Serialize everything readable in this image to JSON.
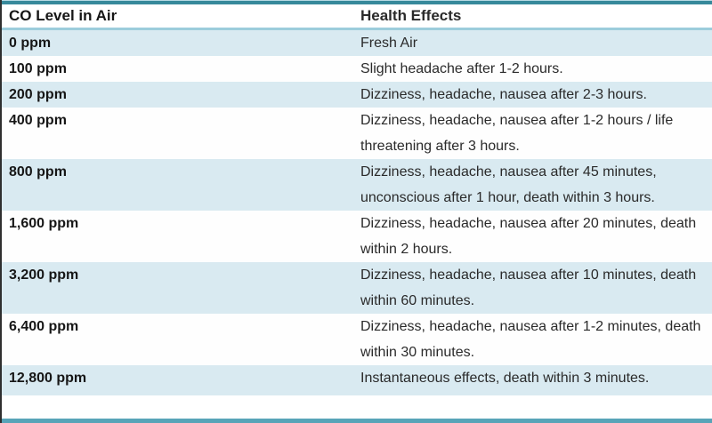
{
  "colors": {
    "top_border": "#37899b",
    "bottom_border": "#58a4b8",
    "header_separator": "#9ccddc",
    "alt_row_background": "#d9eaf1",
    "left_edge_line": "#2f2f2f",
    "text": "#1f1f1f"
  },
  "chart_data": {
    "type": "table",
    "columns": [
      "CO Level in Air",
      "Health Effects"
    ],
    "rows": [
      {
        "level": "0 ppm",
        "effect": "Fresh Air"
      },
      {
        "level": "100 ppm",
        "effect": "Slight headache after 1-2 hours."
      },
      {
        "level": "200 ppm",
        "effect": "Dizziness, headache, nausea after 2-3 hours."
      },
      {
        "level": "400 ppm",
        "effect": "Dizziness, headache, nausea after 1-2 hours / life threatening after 3 hours."
      },
      {
        "level": "800 ppm",
        "effect": "Dizziness, headache, nausea after 45 minutes, unconscious after 1 hour, death within 3 hours."
      },
      {
        "level": "1,600 ppm",
        "effect": "Dizziness, headache, nausea after 20 minutes, death within 2 hours."
      },
      {
        "level": "3,200 ppm",
        "effect": "Dizziness, headache, nausea after 10 minutes, death within 60 minutes."
      },
      {
        "level": "6,400 ppm",
        "effect": "Dizziness, headache, nausea after 1-2 minutes, death within 30 minutes."
      },
      {
        "level": "12,800 ppm",
        "effect": "Instantaneous effects, death within 3 minutes."
      }
    ]
  }
}
